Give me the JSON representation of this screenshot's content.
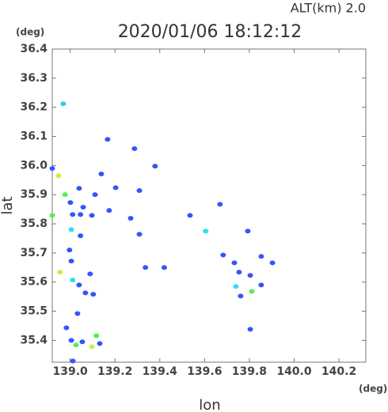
{
  "chart_data": {
    "type": "scatter",
    "title": "2020/01/06 18:12:12",
    "subtitle": "ALT(km) 2.0",
    "x_unit": "(deg)",
    "y_unit": "(deg)",
    "x_label": "lon",
    "y_label": "lat",
    "xlim": [
      138.92,
      140.32
    ],
    "ylim": [
      35.325,
      36.4
    ],
    "xticks": [
      {
        "value": 139,
        "label": "139.0"
      },
      139.2,
      139.4,
      139.6,
      139.8,
      {
        "value": 140,
        "label": "140.0"
      },
      140.2
    ],
    "yticks": [
      35.4,
      35.5,
      35.6,
      35.7,
      35.8,
      35.9,
      36.0,
      36.1,
      36.2,
      36.3,
      36.4
    ],
    "yticklabels": [
      "35.4",
      "35.5",
      "35.6",
      "35.7",
      "35.8",
      "35.9",
      "36.0",
      "36.1",
      "36.2",
      "36.3",
      "36.4"
    ],
    "x": [
      138.969,
      139.167,
      139.287,
      139.379,
      138.92,
      138.948,
      139.139,
      139.203,
      139.309,
      139.04,
      138.977,
      139.001,
      139.111,
      139.058,
      139.011,
      139.046,
      139.097,
      139.174,
      139.27,
      138.92,
      139.005,
      139.046,
      139.309,
      139.605,
      139.669,
      139.793,
      138.997,
      139.005,
      138.955,
      139.011,
      139.04,
      139.089,
      139.068,
      139.103,
      139.336,
      139.42,
      139.683,
      139.733,
      139.754,
      139.804,
      139.853,
      139.903,
      139.74,
      139.811,
      139.761,
      139.853,
      139.033,
      138.983,
      139.005,
      139.026,
      139.054,
      139.117,
      139.097,
      139.132,
      139.012,
      139.804,
      139.535
    ],
    "y": [
      36.212,
      36.09,
      36.058,
      35.998,
      35.99,
      35.965,
      35.971,
      35.924,
      35.914,
      35.922,
      35.9,
      35.873,
      35.9,
      35.857,
      35.832,
      35.832,
      35.829,
      35.846,
      35.819,
      35.829,
      35.78,
      35.759,
      35.764,
      35.775,
      35.867,
      35.775,
      35.71,
      35.672,
      35.634,
      35.607,
      35.59,
      35.628,
      35.563,
      35.558,
      35.65,
      35.65,
      35.693,
      35.666,
      35.634,
      35.623,
      35.688,
      35.666,
      35.585,
      35.568,
      35.552,
      35.59,
      35.492,
      35.443,
      35.4,
      35.384,
      35.395,
      35.416,
      35.378,
      35.389,
      35.329,
      35.438,
      35.829
    ],
    "colors": [
      "#33ccee",
      "#3355ff",
      "#3355ff",
      "#3355ff",
      "#3355ff",
      "#ccee44",
      "#3355ff",
      "#3355ff",
      "#3355ff",
      "#3355ff",
      "#55ee55",
      "#3355ff",
      "#3355ff",
      "#3355ff",
      "#3355ff",
      "#3355ff",
      "#3355ff",
      "#3355ff",
      "#3355ff",
      "#55ee55",
      "#33ddee",
      "#3355ff",
      "#3355ff",
      "#33ddee",
      "#3355ff",
      "#3355ff",
      "#3355ff",
      "#3355ff",
      "#ccee44",
      "#33ddee",
      "#3355ff",
      "#3355ff",
      "#3355ff",
      "#3355ff",
      "#3355ff",
      "#3355ff",
      "#3355ff",
      "#3355ff",
      "#3355ff",
      "#3355ff",
      "#3355ff",
      "#3355ff",
      "#33ddee",
      "#55ee55",
      "#3355ff",
      "#3355ff",
      "#3355ff",
      "#3355ff",
      "#3355ff",
      "#55ee55",
      "#3355ff",
      "#55ee55",
      "#ccee44",
      "#3355ff",
      "#3355ff",
      "#3355ff",
      "#3355ff"
    ]
  }
}
